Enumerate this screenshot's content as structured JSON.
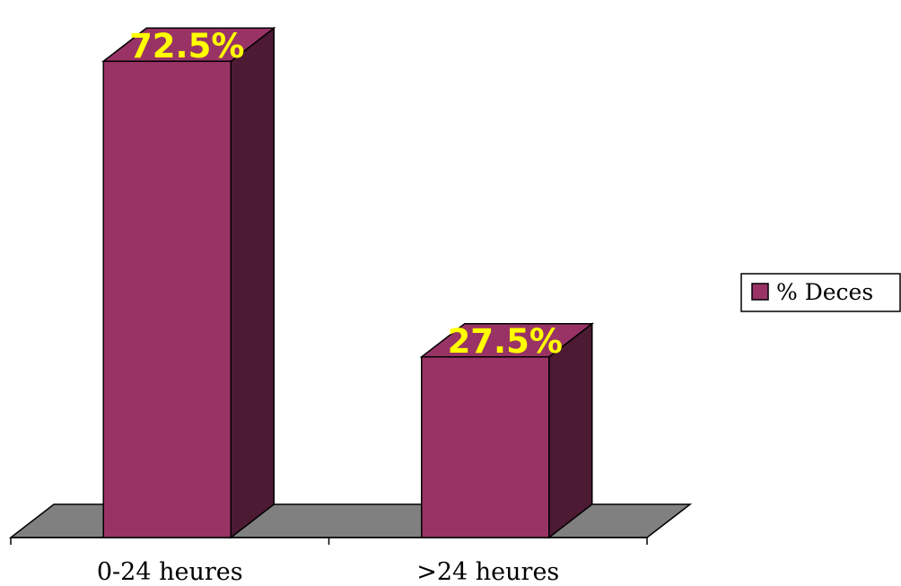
{
  "chart_data": {
    "type": "bar",
    "style": "3d",
    "categories": [
      "0-24 heures",
      ">24 heures"
    ],
    "series": [
      {
        "name": "% Deces",
        "values": [
          72.5,
          27.5
        ]
      }
    ],
    "data_labels": [
      "72.5%",
      "27.5%"
    ],
    "ylim": [
      0,
      100
    ],
    "grid": false,
    "legend_position": "right",
    "colors": {
      "bar_front": "#993366",
      "bar_side": "#4d1a33",
      "floor": "#808080",
      "data_label": "#ffff00"
    }
  }
}
